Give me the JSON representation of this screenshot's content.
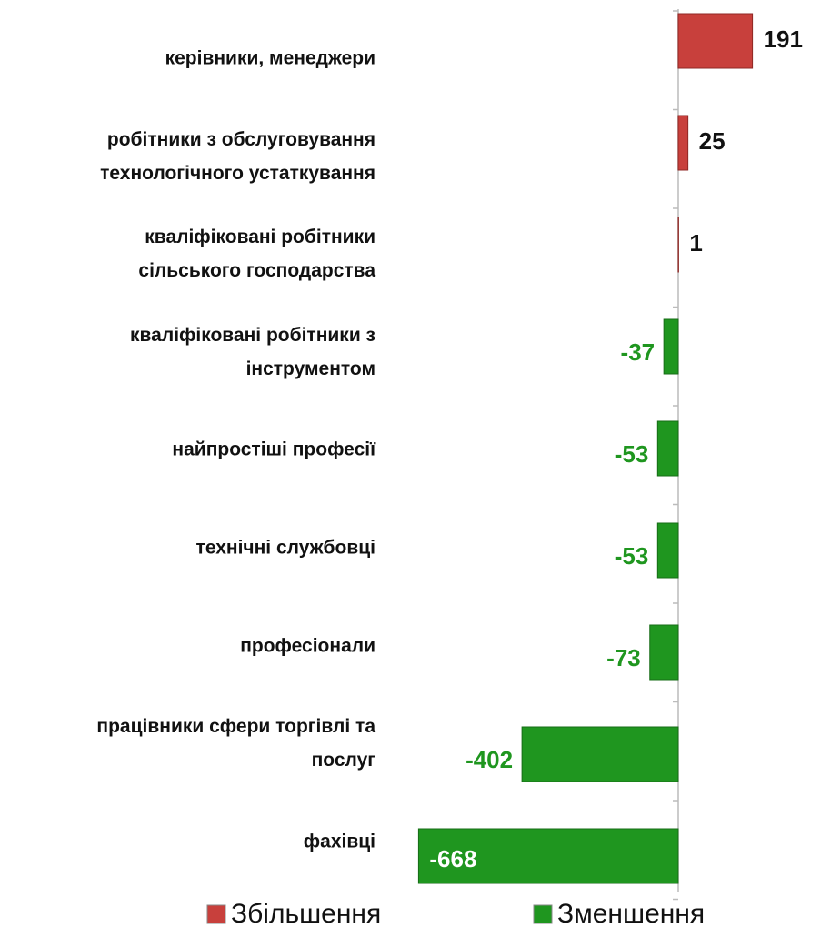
{
  "chart_data": {
    "type": "bar",
    "orientation": "horizontal",
    "categories": [
      "керівники, менеджери",
      "робітники з обслуговування\nтехнологічного устаткування",
      "кваліфіковані робітники\nсільського господарства",
      "кваліфіковані робітники з\nінструментом",
      "найпростіші професії",
      "технічні службовці",
      "професіонали",
      "працівники сфери торгівлі та\nпослуг",
      "фахівці"
    ],
    "series": [
      {
        "name": "Збільшення",
        "color": "#c8403c",
        "values": [
          191,
          25,
          1,
          null,
          null,
          null,
          null,
          null,
          null
        ]
      },
      {
        "name": "Зменшення",
        "color": "#1f961f",
        "values": [
          null,
          null,
          null,
          -37,
          -53,
          -53,
          -73,
          -402,
          -668
        ]
      }
    ],
    "xlim": [
      -690,
      220
    ],
    "legend": "bottom"
  }
}
